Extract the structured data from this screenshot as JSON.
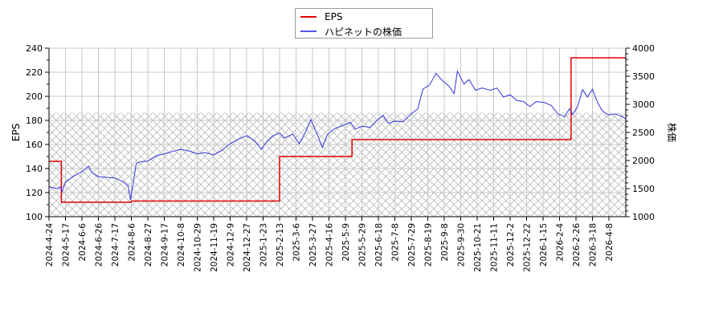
{
  "legend": {
    "items": [
      {
        "label": "EPS",
        "color": "#dd0000"
      },
      {
        "label": "ハピネットの株価",
        "color": "#3333dd"
      }
    ]
  },
  "chart_data": {
    "type": "line",
    "title": "",
    "xlabel": "",
    "ylabel": "EPS",
    "y2label": "株価",
    "ylim": [
      100,
      240
    ],
    "y2lim": [
      1000,
      4000
    ],
    "yticks": [
      100,
      120,
      140,
      160,
      180,
      200,
      220,
      240
    ],
    "y2ticks": [
      1000,
      1500,
      2000,
      2500,
      3000,
      3500,
      4000
    ],
    "grid": true,
    "legend_position": "top-center",
    "hatched_band": {
      "axis": "y2",
      "from": 1000,
      "to": 2850
    },
    "categories": [
      "2024-4-24",
      "2024-5-17",
      "2024-6-6",
      "2024-6-26",
      "2024-7-17",
      "2024-8-6",
      "2024-8-27",
      "2024-9-17",
      "2024-10-8",
      "2024-10-29",
      "2024-11-19",
      "2024-12-9",
      "2024-12-27",
      "2025-1-23",
      "2025-2-13",
      "2025-3-6",
      "2025-3-27",
      "2025-4-16",
      "2025-5-9",
      "2025-5-29",
      "2025-6-18",
      "2025-7-8",
      "2025-7-29",
      "2025-8-19",
      "2025-9-8",
      "2025-9-30",
      "2025-10-21",
      "2025-11-11",
      "2025-12-2",
      "2025-12-22",
      "2026-1-15",
      "2026-2-4",
      "2026-2-26",
      "2026-3-18",
      "2026-4-8"
    ],
    "series": [
      {
        "name": "EPS",
        "axis": "left",
        "color": "#dd0000",
        "step": true,
        "points": [
          {
            "x": 0,
            "y": 146
          },
          {
            "x": 0.7,
            "y": 146
          },
          {
            "x": 0.75,
            "y": 112
          },
          {
            "x": 3,
            "y": 112
          },
          {
            "x": 5,
            "y": 113
          },
          {
            "x": 13.5,
            "y": 113
          },
          {
            "x": 14.0,
            "y": 150
          },
          {
            "x": 18.3,
            "y": 150
          },
          {
            "x": 18.4,
            "y": 164
          },
          {
            "x": 31.6,
            "y": 164
          },
          {
            "x": 31.7,
            "y": 232
          },
          {
            "x": 35.0,
            "y": 232
          }
        ]
      },
      {
        "name": "ハピネットの株価",
        "axis": "right",
        "color": "#3333dd",
        "points": [
          {
            "x": 0,
            "y": 1530
          },
          {
            "x": 0.5,
            "y": 1500
          },
          {
            "x": 0.7,
            "y": 1530
          },
          {
            "x": 0.8,
            "y": 1450
          },
          {
            "x": 1.0,
            "y": 1620
          },
          {
            "x": 1.5,
            "y": 1720
          },
          {
            "x": 2.0,
            "y": 1800
          },
          {
            "x": 2.4,
            "y": 1900
          },
          {
            "x": 2.6,
            "y": 1790
          },
          {
            "x": 3.0,
            "y": 1710
          },
          {
            "x": 3.5,
            "y": 1700
          },
          {
            "x": 4.0,
            "y": 1690
          },
          {
            "x": 4.5,
            "y": 1620
          },
          {
            "x": 4.8,
            "y": 1550
          },
          {
            "x": 4.95,
            "y": 1300
          },
          {
            "x": 5.1,
            "y": 1580
          },
          {
            "x": 5.3,
            "y": 1950
          },
          {
            "x": 5.6,
            "y": 1980
          },
          {
            "x": 6.0,
            "y": 1990
          },
          {
            "x": 6.5,
            "y": 2080
          },
          {
            "x": 7.0,
            "y": 2120
          },
          {
            "x": 7.5,
            "y": 2160
          },
          {
            "x": 8.0,
            "y": 2200
          },
          {
            "x": 8.5,
            "y": 2170
          },
          {
            "x": 9.0,
            "y": 2120
          },
          {
            "x": 9.5,
            "y": 2140
          },
          {
            "x": 10.0,
            "y": 2100
          },
          {
            "x": 10.5,
            "y": 2180
          },
          {
            "x": 11.0,
            "y": 2300
          },
          {
            "x": 11.5,
            "y": 2380
          },
          {
            "x": 12.0,
            "y": 2440
          },
          {
            "x": 12.5,
            "y": 2350
          },
          {
            "x": 12.9,
            "y": 2200
          },
          {
            "x": 13.2,
            "y": 2330
          },
          {
            "x": 13.6,
            "y": 2440
          },
          {
            "x": 14.0,
            "y": 2490
          },
          {
            "x": 14.3,
            "y": 2400
          },
          {
            "x": 14.8,
            "y": 2470
          },
          {
            "x": 15.2,
            "y": 2300
          },
          {
            "x": 15.6,
            "y": 2520
          },
          {
            "x": 15.9,
            "y": 2730
          },
          {
            "x": 16.3,
            "y": 2460
          },
          {
            "x": 16.6,
            "y": 2230
          },
          {
            "x": 16.9,
            "y": 2460
          },
          {
            "x": 17.3,
            "y": 2560
          },
          {
            "x": 17.8,
            "y": 2620
          },
          {
            "x": 18.3,
            "y": 2680
          },
          {
            "x": 18.6,
            "y": 2560
          },
          {
            "x": 19.0,
            "y": 2610
          },
          {
            "x": 19.5,
            "y": 2590
          },
          {
            "x": 20.0,
            "y": 2740
          },
          {
            "x": 20.3,
            "y": 2800
          },
          {
            "x": 20.6,
            "y": 2660
          },
          {
            "x": 21.0,
            "y": 2700
          },
          {
            "x": 21.5,
            "y": 2690
          },
          {
            "x": 22.0,
            "y": 2830
          },
          {
            "x": 22.4,
            "y": 2920
          },
          {
            "x": 22.7,
            "y": 3270
          },
          {
            "x": 23.1,
            "y": 3340
          },
          {
            "x": 23.5,
            "y": 3550
          },
          {
            "x": 23.9,
            "y": 3420
          },
          {
            "x": 24.3,
            "y": 3320
          },
          {
            "x": 24.6,
            "y": 3190
          },
          {
            "x": 24.8,
            "y": 3590
          },
          {
            "x": 25.2,
            "y": 3360
          },
          {
            "x": 25.5,
            "y": 3440
          },
          {
            "x": 25.9,
            "y": 3250
          },
          {
            "x": 26.3,
            "y": 3290
          },
          {
            "x": 26.8,
            "y": 3250
          },
          {
            "x": 27.2,
            "y": 3290
          },
          {
            "x": 27.6,
            "y": 3130
          },
          {
            "x": 28.0,
            "y": 3170
          },
          {
            "x": 28.4,
            "y": 3070
          },
          {
            "x": 28.8,
            "y": 3050
          },
          {
            "x": 29.2,
            "y": 2960
          },
          {
            "x": 29.6,
            "y": 3050
          },
          {
            "x": 30.1,
            "y": 3030
          },
          {
            "x": 30.5,
            "y": 2980
          },
          {
            "x": 30.9,
            "y": 2830
          },
          {
            "x": 31.3,
            "y": 2780
          },
          {
            "x": 31.6,
            "y": 2920
          },
          {
            "x": 31.8,
            "y": 2820
          },
          {
            "x": 32.1,
            "y": 2960
          },
          {
            "x": 32.4,
            "y": 3260
          },
          {
            "x": 32.7,
            "y": 3130
          },
          {
            "x": 33.0,
            "y": 3270
          },
          {
            "x": 33.3,
            "y": 3040
          },
          {
            "x": 33.6,
            "y": 2880
          },
          {
            "x": 34.0,
            "y": 2810
          },
          {
            "x": 34.4,
            "y": 2830
          },
          {
            "x": 34.8,
            "y": 2780
          },
          {
            "x": 35.0,
            "y": 2750
          }
        ]
      }
    ]
  }
}
